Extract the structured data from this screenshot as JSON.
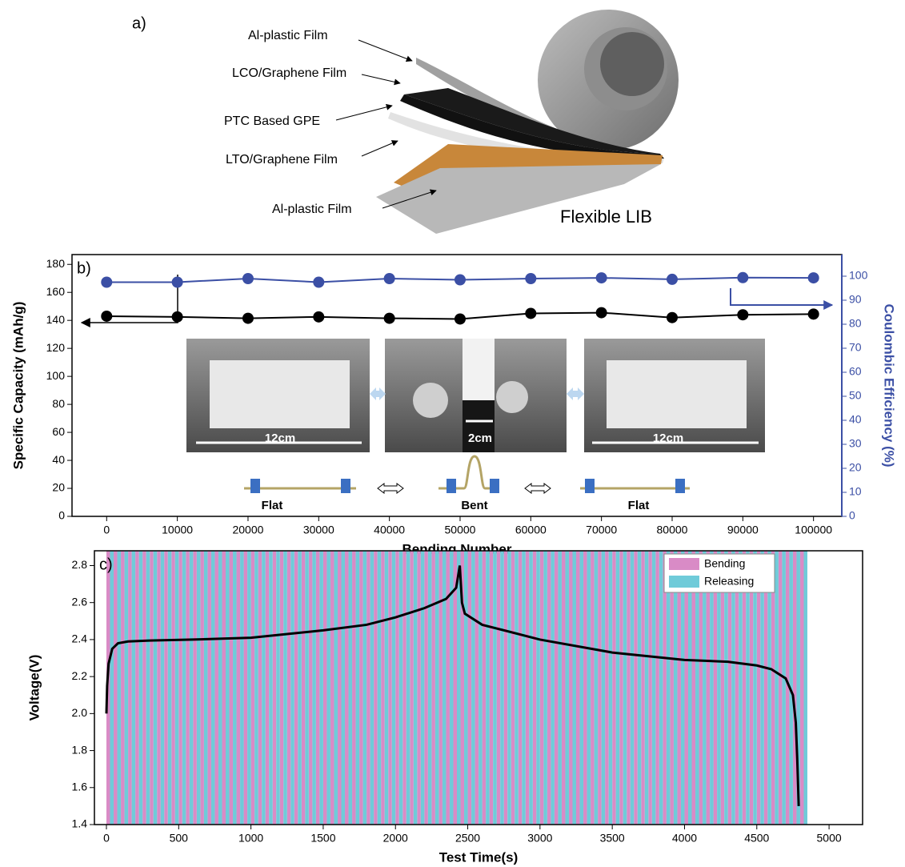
{
  "diagram": {
    "panel_label": "a)",
    "layer_labels": [
      "Al-plastic Film",
      "LCO/Graphene Film",
      "PTC Based GPE",
      "LTO/Graphene Film",
      "Al-plastic Film"
    ],
    "caption": "Flexible LIB"
  },
  "chart_data": [
    {
      "type": "line",
      "panel_label": "b)",
      "x_label": "Bending Number",
      "y_label": "Specific Capacity (mAh/g)",
      "y2_label": "Coulombic Efficiency (%)",
      "x": [
        0,
        10000,
        20000,
        30000,
        40000,
        50000,
        60000,
        70000,
        80000,
        90000,
        100000
      ],
      "xlim": [
        -4900,
        104000
      ],
      "xticks": [
        0,
        10000,
        20000,
        30000,
        40000,
        50000,
        60000,
        70000,
        80000,
        90000,
        100000
      ],
      "ylim": [
        0,
        187
      ],
      "yticks": [
        0,
        20,
        40,
        60,
        80,
        100,
        120,
        140,
        160,
        180
      ],
      "y2lim": [
        0,
        109
      ],
      "y2ticks": [
        0,
        10,
        20,
        30,
        40,
        50,
        60,
        70,
        80,
        90,
        100
      ],
      "series": [
        {
          "color": "#000000",
          "values": [
            143,
            142.5,
            141.5,
            142.5,
            141.5,
            141,
            145,
            145.5,
            142,
            144,
            144.5
          ]
        },
        {
          "color": "#3b4fa5",
          "axis": "y2",
          "values": [
            97.5,
            97.5,
            99,
            97.5,
            99,
            98.5,
            99,
            99.3,
            98.7,
            99.4,
            99.3
          ]
        }
      ],
      "annotations": [
        "12cm",
        "2cm",
        "12cm",
        "Flat",
        "Bent",
        "Flat"
      ]
    },
    {
      "type": "line",
      "panel_label": "c)",
      "x_label": "Test Time(s)",
      "y_label": "Voltage(V)",
      "x": [
        0,
        5,
        15,
        40,
        80,
        150,
        300,
        600,
        1000,
        1500,
        1800,
        2000,
        2200,
        2350,
        2420,
        2445,
        2460,
        2480,
        2600,
        3000,
        3500,
        4000,
        4300,
        4500,
        4600,
        4700,
        4750,
        4770,
        4780,
        4790
      ],
      "xlim": [
        -83,
        5232
      ],
      "xticks": [
        0,
        500,
        1000,
        1500,
        2000,
        2500,
        3000,
        3500,
        4000,
        4500,
        5000
      ],
      "ylim": [
        1.4,
        2.88
      ],
      "yticks": [
        1.4,
        1.6,
        1.8,
        {
          "value": 2,
          "label": "2.0"
        },
        2.2,
        2.4,
        2.6,
        2.8
      ],
      "series": [
        {
          "color": "#000000",
          "values": [
            2.0,
            2.15,
            2.27,
            2.35,
            2.38,
            2.39,
            2.395,
            2.4,
            2.41,
            2.45,
            2.48,
            2.52,
            2.57,
            2.62,
            2.68,
            2.8,
            2.6,
            2.54,
            2.48,
            2.4,
            2.33,
            2.29,
            2.28,
            2.26,
            2.24,
            2.19,
            2.1,
            1.95,
            1.75,
            1.5
          ]
        }
      ],
      "bands": [
        {
          "name": "Bending",
          "color": "#d98bc6",
          "width": 25,
          "starts": [
            0,
            50,
            100,
            150,
            200,
            250,
            300,
            350,
            400,
            450,
            500,
            550,
            600,
            650,
            700,
            750,
            800,
            850,
            900,
            950,
            1000,
            1050,
            1100,
            1150,
            1200,
            1250,
            1300,
            1350,
            1400,
            1450,
            1500,
            1550,
            1600,
            1650,
            1700,
            1750,
            1800,
            1850,
            1900,
            1950,
            2000,
            2050,
            2100,
            2150,
            2200,
            2250,
            2300,
            2350,
            2400,
            2450,
            2500,
            2550,
            2600,
            2650,
            2700,
            2750,
            2800,
            2850,
            2900,
            2950,
            3000,
            3050,
            3100,
            3150,
            3200,
            3250,
            3300,
            3350,
            3400,
            3450,
            3500,
            3550,
            3600,
            3650,
            3700,
            3750,
            3800,
            3850,
            3900,
            3950,
            4000,
            4050,
            4100,
            4150,
            4200,
            4250,
            4300,
            4350,
            4400,
            4450,
            4500,
            4550,
            4600,
            4650,
            4700,
            4750,
            4800
          ]
        },
        {
          "name": "Releasing",
          "color": "#6fcbd9",
          "width": 25,
          "starts": [
            25,
            75,
            125,
            175,
            225,
            275,
            325,
            375,
            425,
            475,
            525,
            575,
            625,
            675,
            725,
            775,
            825,
            875,
            925,
            975,
            1025,
            1075,
            1125,
            1175,
            1225,
            1275,
            1325,
            1375,
            1425,
            1475,
            1525,
            1575,
            1625,
            1675,
            1725,
            1775,
            1825,
            1875,
            1925,
            1975,
            2025,
            2075,
            2125,
            2175,
            2225,
            2275,
            2325,
            2375,
            2425,
            2475,
            2525,
            2575,
            2625,
            2675,
            2725,
            2775,
            2825,
            2875,
            2925,
            2975,
            3025,
            3075,
            3125,
            3175,
            3225,
            3275,
            3325,
            3375,
            3425,
            3475,
            3525,
            3575,
            3625,
            3675,
            3725,
            3775,
            3825,
            3875,
            3925,
            3975,
            4025,
            4075,
            4125,
            4175,
            4225,
            4275,
            4325,
            4375,
            4425,
            4475,
            4525,
            4575,
            4625,
            4675,
            4725,
            4775,
            4825
          ]
        }
      ],
      "legend": "upper right"
    }
  ]
}
